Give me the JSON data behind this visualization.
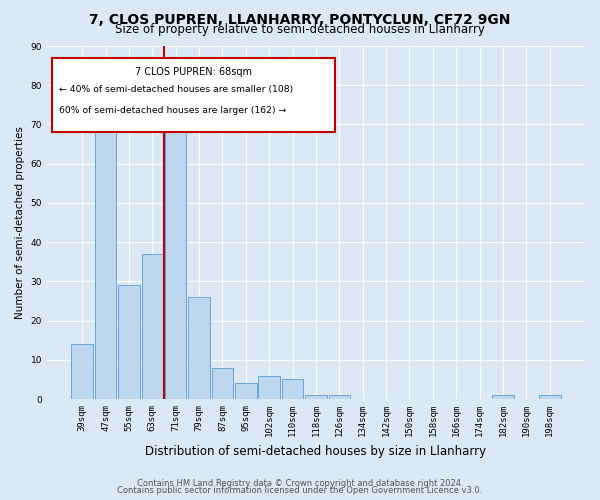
{
  "title": "7, CLOS PUPREN, LLANHARRY, PONTYCLUN, CF72 9GN",
  "subtitle": "Size of property relative to semi-detached houses in Llanharry",
  "xlabel": "Distribution of semi-detached houses by size in Llanharry",
  "ylabel": "Number of semi-detached properties",
  "categories": [
    "39sqm",
    "47sqm",
    "55sqm",
    "63sqm",
    "71sqm",
    "79sqm",
    "87sqm",
    "95sqm",
    "102sqm",
    "110sqm",
    "118sqm",
    "126sqm",
    "134sqm",
    "142sqm",
    "150sqm",
    "158sqm",
    "166sqm",
    "174sqm",
    "182sqm",
    "190sqm",
    "198sqm"
  ],
  "values": [
    14,
    70,
    29,
    37,
    68,
    26,
    8,
    4,
    6,
    5,
    1,
    1,
    0,
    0,
    0,
    0,
    0,
    0,
    1,
    0,
    1
  ],
  "bar_color": "#bdd7ee",
  "bar_edge_color": "#5b9bd5",
  "annotation_text_line1": "7 CLOS PUPREN: 68sqm",
  "annotation_text_line2": "← 40% of semi-detached houses are smaller (108)",
  "annotation_text_line3": "60% of semi-detached houses are larger (162) →",
  "box_color": "#c00000",
  "ylim": [
    0,
    90
  ],
  "yticks": [
    0,
    10,
    20,
    30,
    40,
    50,
    60,
    70,
    80,
    90
  ],
  "footer_line1": "Contains HM Land Registry data © Crown copyright and database right 2024.",
  "footer_line2": "Contains public sector information licensed under the Open Government Licence v3.0.",
  "bg_color": "#dce9f5",
  "grid_color": "#ffffff",
  "title_fontsize": 10,
  "subtitle_fontsize": 8.5,
  "xlabel_fontsize": 8.5,
  "ylabel_fontsize": 7.5,
  "tick_fontsize": 6.5,
  "annotation_fontsize": 7,
  "footer_fontsize": 6
}
